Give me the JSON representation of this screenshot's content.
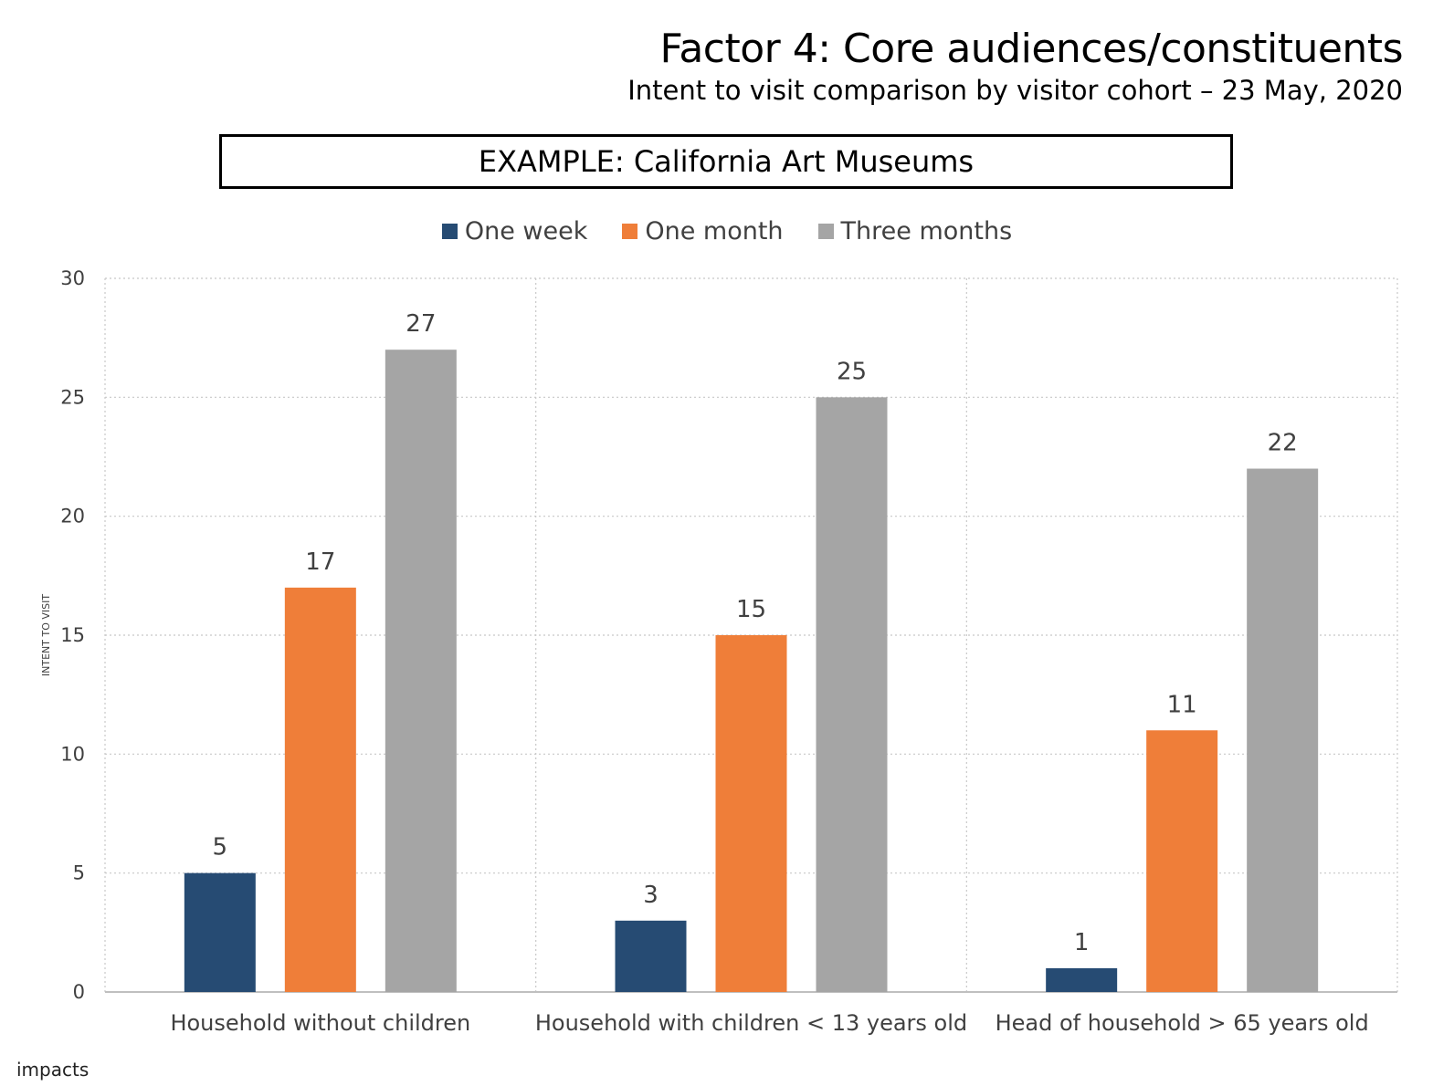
{
  "header": {
    "title": "Factor 4: Core audiences/constituents",
    "subtitle": "Intent to visit comparison by visitor cohort – 23 May, 2020",
    "example_label": "EXAMPLE: California Art Museums"
  },
  "footer": {
    "brand": "impacts"
  },
  "chart_data": {
    "type": "bar",
    "ylabel": "INTENT TO VISIT",
    "ylim": [
      0,
      30
    ],
    "yticks": [
      0,
      5,
      10,
      15,
      20,
      25,
      30
    ],
    "grid": true,
    "legend_position": "top",
    "categories": [
      "Household without children",
      "Household with children < 13 years old",
      "Head of household > 65 years old"
    ],
    "series": [
      {
        "name": "One week",
        "color": "#264B73",
        "values": [
          5,
          3,
          1
        ]
      },
      {
        "name": "One month",
        "color": "#EF7E39",
        "values": [
          17,
          15,
          11
        ]
      },
      {
        "name": "Three months",
        "color": "#A5A5A5",
        "values": [
          27,
          25,
          22
        ]
      }
    ]
  }
}
